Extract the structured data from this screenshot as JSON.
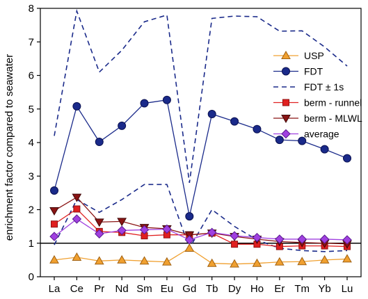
{
  "chart_data": {
    "type": "line",
    "title": "",
    "xlabel": "",
    "ylabel": "enrichment factor compared to seawater",
    "categories": [
      "La",
      "Ce",
      "Pr",
      "Nd",
      "Sm",
      "Eu",
      "Gd",
      "Tb",
      "Dy",
      "Ho",
      "Er",
      "Tm",
      "Yb",
      "Lu"
    ],
    "ylim": [
      0,
      8
    ],
    "yticks": [
      "0",
      "1",
      "2",
      "3",
      "4",
      "5",
      "6",
      "7",
      "8"
    ],
    "reference_line": 1,
    "grid": false,
    "legend_position": "right",
    "series": [
      {
        "name": "USP",
        "color": "#f0a030",
        "edge": "#a06010",
        "marker": "triangle",
        "line": "solid",
        "values": [
          0.5,
          0.58,
          0.47,
          0.5,
          0.47,
          0.44,
          0.85,
          0.4,
          0.38,
          0.4,
          0.44,
          0.45,
          0.5,
          0.53
        ]
      },
      {
        "name": "FDT",
        "color": "#1a2a8a",
        "edge": "#0a1050",
        "marker": "circle",
        "line": "solid",
        "values": [
          2.57,
          5.08,
          4.02,
          4.5,
          5.17,
          5.27,
          1.8,
          4.85,
          4.63,
          4.4,
          4.08,
          4.05,
          3.8,
          3.53
        ]
      },
      {
        "name": "FDT ± 1s",
        "color": "#1a2a8a",
        "marker": "none",
        "line": "dashed",
        "values": [
          4.2,
          7.92,
          6.1,
          6.75,
          7.6,
          7.8,
          2.8,
          7.7,
          7.77,
          7.75,
          7.32,
          7.33,
          6.85,
          6.28
        ],
        "values_lower": [
          0.95,
          2.3,
          1.92,
          2.3,
          2.75,
          2.75,
          0.85,
          2.0,
          1.5,
          1.1,
          0.85,
          0.78,
          0.75,
          0.78
        ]
      },
      {
        "name": "berm - runnel",
        "color": "#e02020",
        "edge": "#901010",
        "marker": "square",
        "line": "solid",
        "values": [
          1.57,
          2.02,
          1.35,
          1.32,
          1.22,
          1.25,
          1.25,
          1.3,
          0.97,
          0.97,
          0.9,
          0.92,
          0.92,
          0.9
        ]
      },
      {
        "name": "berm - MLWL",
        "color": "#8a1414",
        "edge": "#400808",
        "marker": "triangle-down",
        "line": "solid",
        "values": [
          1.97,
          2.37,
          1.63,
          1.65,
          1.47,
          1.43,
          1.25,
          1.3,
          1.2,
          1.12,
          1.05,
          1.02,
          1.0,
          0.98
        ]
      },
      {
        "name": "average",
        "color": "#a040e0",
        "edge": "#5a1a90",
        "marker": "diamond",
        "line": "solid",
        "values": [
          1.2,
          1.72,
          1.28,
          1.38,
          1.4,
          1.42,
          1.1,
          1.32,
          1.22,
          1.17,
          1.12,
          1.12,
          1.12,
          1.1
        ]
      }
    ]
  }
}
